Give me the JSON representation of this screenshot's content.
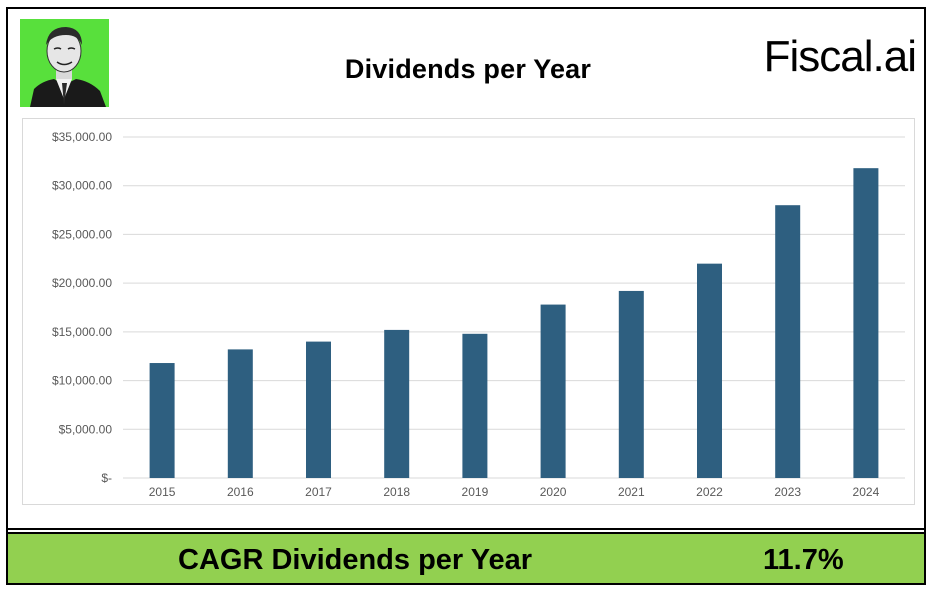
{
  "header": {
    "title": "Dividends per Year",
    "brand": "Fiscal.ai"
  },
  "footer": {
    "label": "CAGR Dividends per Year",
    "value": "11.7%"
  },
  "colors": {
    "bar": "#2e5f80",
    "grid": "#d9d9d9",
    "footer_bg": "#92d050",
    "avatar_bg": "#58e03c"
  },
  "chart_data": {
    "type": "bar",
    "title": "Dividends per Year",
    "categories": [
      "2015",
      "2016",
      "2017",
      "2018",
      "2019",
      "2020",
      "2021",
      "2022",
      "2023",
      "2024"
    ],
    "values": [
      11800,
      13200,
      14000,
      15200,
      14800,
      17800,
      19200,
      22000,
      28000,
      31800
    ],
    "ylim": [
      0,
      35000
    ],
    "yticks": [
      0,
      5000,
      10000,
      15000,
      20000,
      25000,
      30000,
      35000
    ],
    "ytick_labels": [
      "$-",
      "$5,000.00",
      "$10,000.00",
      "$15,000.00",
      "$20,000.00",
      "$25,000.00",
      "$30,000.00",
      "$35,000.00"
    ],
    "grid": true,
    "legend": false
  }
}
